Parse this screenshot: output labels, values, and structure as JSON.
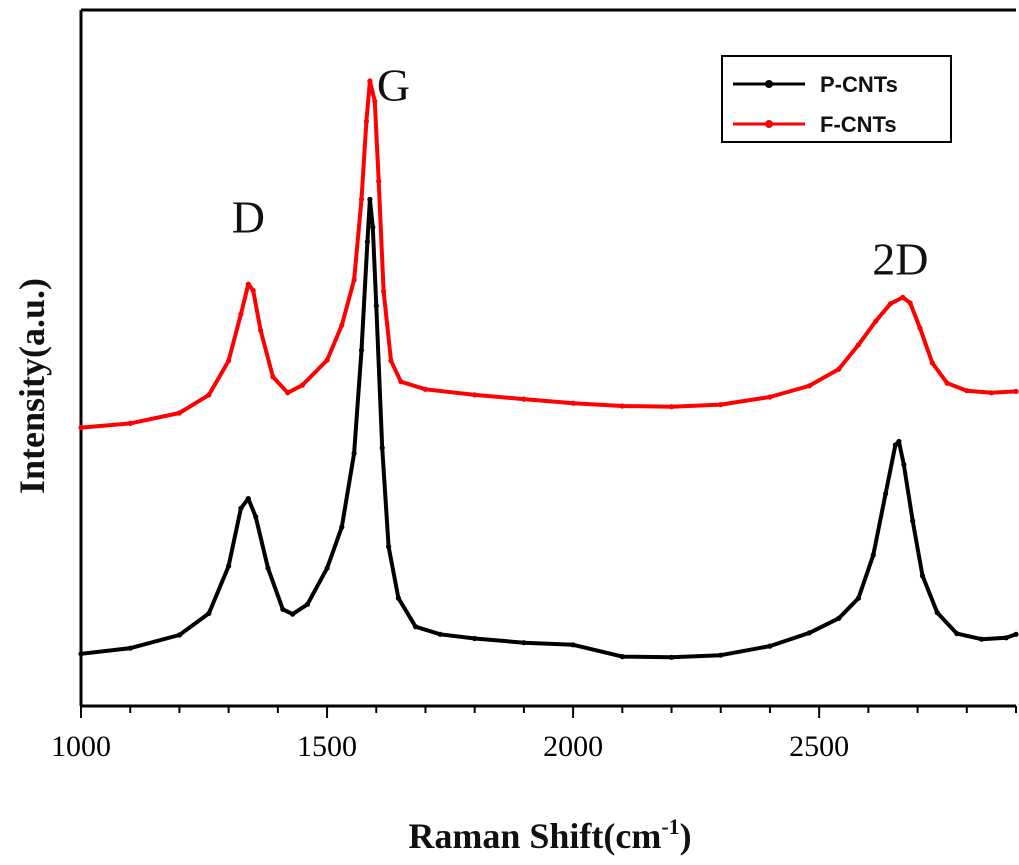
{
  "chart_data": {
    "type": "line",
    "xlabel": "Raman Shift(cm",
    "xlabel_sup": "-1",
    "xlabel_close": ")",
    "ylabel": "Intensity(a.u.)",
    "xlim": [
      1000,
      2900
    ],
    "ylim": [
      0,
      100
    ],
    "x_ticks": [
      1000,
      1500,
      2000,
      2500
    ],
    "x_tick_labels": [
      "1000",
      "1500",
      "2000",
      "2500"
    ],
    "y_ticks_shown": false,
    "grid": false,
    "legend": {
      "placement": "top-right",
      "entries": [
        "P-CNTs",
        "F-CNTs"
      ]
    },
    "annotations": [
      {
        "text": "D",
        "x": 1340,
        "y": 68
      },
      {
        "text": "G",
        "x": 1635,
        "y": 87
      },
      {
        "text": "2D",
        "x": 2665,
        "y": 62
      }
    ],
    "series": [
      {
        "name": "P-CNTs",
        "color": "#000000",
        "points": [
          [
            1000,
            7.5
          ],
          [
            1100,
            8.3
          ],
          [
            1200,
            10.2
          ],
          [
            1260,
            13.3
          ],
          [
            1300,
            20.1
          ],
          [
            1325,
            28.4
          ],
          [
            1340,
            29.8
          ],
          [
            1355,
            27.2
          ],
          [
            1380,
            19.8
          ],
          [
            1410,
            13.9
          ],
          [
            1430,
            13.2
          ],
          [
            1460,
            14.6
          ],
          [
            1500,
            19.8
          ],
          [
            1530,
            25.7
          ],
          [
            1555,
            36.3
          ],
          [
            1570,
            51.1
          ],
          [
            1582,
            66.7
          ],
          [
            1587,
            72.8
          ],
          [
            1593,
            68.8
          ],
          [
            1600,
            57.5
          ],
          [
            1612,
            37.1
          ],
          [
            1625,
            22.9
          ],
          [
            1645,
            15.5
          ],
          [
            1680,
            11.4
          ],
          [
            1730,
            10.3
          ],
          [
            1800,
            9.7
          ],
          [
            1900,
            9.1
          ],
          [
            2000,
            8.8
          ],
          [
            2100,
            7.1
          ],
          [
            2200,
            7.0
          ],
          [
            2300,
            7.3
          ],
          [
            2400,
            8.6
          ],
          [
            2480,
            10.5
          ],
          [
            2540,
            12.6
          ],
          [
            2580,
            15.5
          ],
          [
            2610,
            21.7
          ],
          [
            2635,
            30.5
          ],
          [
            2655,
            37.5
          ],
          [
            2662,
            38.0
          ],
          [
            2672,
            34.7
          ],
          [
            2690,
            26.6
          ],
          [
            2710,
            18.7
          ],
          [
            2740,
            13.4
          ],
          [
            2780,
            10.4
          ],
          [
            2830,
            9.6
          ],
          [
            2880,
            9.8
          ],
          [
            2900,
            10.3
          ]
        ]
      },
      {
        "name": "F-CNTs",
        "color": "#ff0000",
        "points": [
          [
            1000,
            40.0
          ],
          [
            1100,
            40.6
          ],
          [
            1200,
            42.1
          ],
          [
            1260,
            44.7
          ],
          [
            1300,
            49.6
          ],
          [
            1325,
            56.3
          ],
          [
            1340,
            60.6
          ],
          [
            1350,
            59.7
          ],
          [
            1365,
            54.0
          ],
          [
            1390,
            47.3
          ],
          [
            1420,
            45.0
          ],
          [
            1450,
            46.1
          ],
          [
            1500,
            49.7
          ],
          [
            1530,
            54.7
          ],
          [
            1555,
            61.2
          ],
          [
            1570,
            72.8
          ],
          [
            1580,
            84.0
          ],
          [
            1587,
            89.8
          ],
          [
            1597,
            86.9
          ],
          [
            1605,
            75.4
          ],
          [
            1615,
            59.6
          ],
          [
            1630,
            49.6
          ],
          [
            1650,
            46.6
          ],
          [
            1700,
            45.5
          ],
          [
            1800,
            44.7
          ],
          [
            1900,
            44.1
          ],
          [
            2000,
            43.5
          ],
          [
            2100,
            43.1
          ],
          [
            2200,
            43.0
          ],
          [
            2300,
            43.3
          ],
          [
            2400,
            44.4
          ],
          [
            2480,
            46.0
          ],
          [
            2540,
            48.4
          ],
          [
            2580,
            51.9
          ],
          [
            2615,
            55.3
          ],
          [
            2645,
            57.8
          ],
          [
            2670,
            58.7
          ],
          [
            2685,
            57.9
          ],
          [
            2705,
            54.3
          ],
          [
            2730,
            49.3
          ],
          [
            2760,
            46.4
          ],
          [
            2800,
            45.3
          ],
          [
            2850,
            45.0
          ],
          [
            2900,
            45.2
          ]
        ]
      }
    ]
  }
}
